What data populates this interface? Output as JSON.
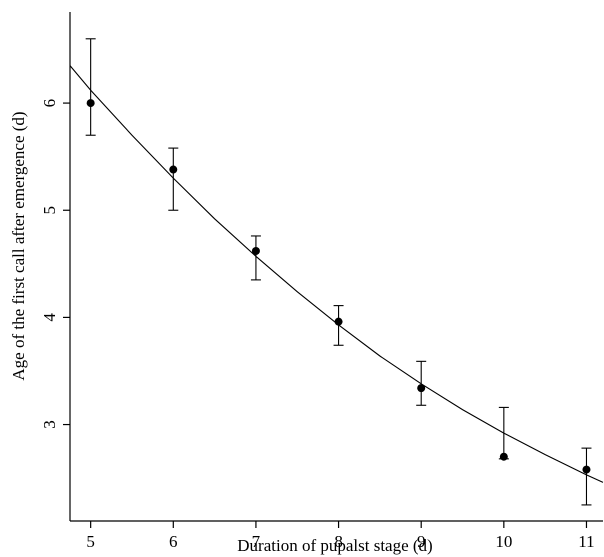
{
  "chart_data": {
    "type": "scatter",
    "xlabel": "Duration of pupalst stage (d)",
    "ylabel": "Age of the first call after emergence (d)",
    "xlim": [
      4.75,
      11.2
    ],
    "ylim": [
      2.1,
      6.85
    ],
    "xticks": [
      5,
      6,
      7,
      8,
      9,
      10,
      11
    ],
    "yticks": [
      3,
      4,
      5,
      6
    ],
    "grid": false,
    "legend": "none",
    "points": [
      {
        "x": 5,
        "y": 6.0,
        "lo": 5.7,
        "hi": 6.6
      },
      {
        "x": 6,
        "y": 5.38,
        "lo": 5.0,
        "hi": 5.58
      },
      {
        "x": 7,
        "y": 4.62,
        "lo": 4.35,
        "hi": 4.76
      },
      {
        "x": 8,
        "y": 3.96,
        "lo": 3.74,
        "hi": 4.11
      },
      {
        "x": 9,
        "y": 3.34,
        "lo": 3.18,
        "hi": 3.59
      },
      {
        "x": 10,
        "y": 2.7,
        "lo": 2.68,
        "hi": 3.16
      },
      {
        "x": 11,
        "y": 2.58,
        "lo": 2.25,
        "hi": 2.78
      }
    ],
    "fit_curve": {
      "x": [
        4.75,
        5,
        5.5,
        6,
        6.5,
        7,
        7.5,
        8,
        8.5,
        9,
        9.5,
        10,
        10.5,
        11,
        11.2
      ],
      "y": [
        6.35,
        6.12,
        5.7,
        5.3,
        4.92,
        4.57,
        4.24,
        3.93,
        3.64,
        3.38,
        3.14,
        2.92,
        2.72,
        2.53,
        2.46
      ]
    }
  }
}
